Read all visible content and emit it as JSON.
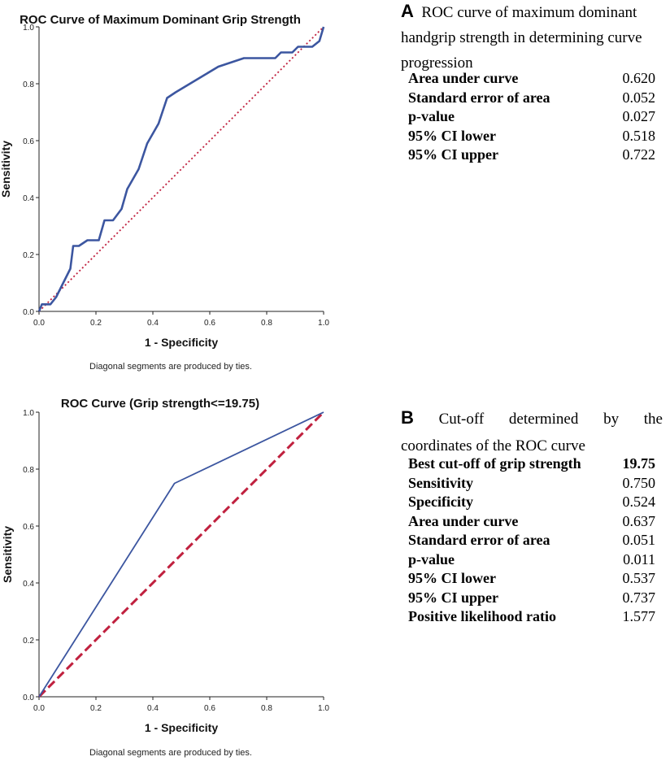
{
  "chart_data": [
    {
      "id": "A",
      "type": "line",
      "title": "ROC Curve of Maximum Dominant Grip Strength",
      "xlabel": "1 - Specificity",
      "ylabel": "Sensitivity",
      "xlim": [
        0,
        1
      ],
      "ylim": [
        0,
        1
      ],
      "xticks": [
        "0.0",
        "0.2",
        "0.4",
        "0.6",
        "0.8",
        "1.0"
      ],
      "yticks": [
        "0.0",
        "0.2",
        "0.4",
        "0.6",
        "0.8",
        "1.0"
      ],
      "footnote": "Diagonal segments are produced by ties.",
      "series": [
        {
          "name": "ROC curve",
          "color": "#3c56a0",
          "style": "solid",
          "x": [
            0,
            0.01,
            0.04,
            0.06,
            0.09,
            0.11,
            0.12,
            0.14,
            0.17,
            0.19,
            0.21,
            0.23,
            0.26,
            0.29,
            0.31,
            0.35,
            0.38,
            0.42,
            0.45,
            0.48,
            0.53,
            0.58,
            0.63,
            0.69,
            0.72,
            0.75,
            0.83,
            0.85,
            0.89,
            0.91,
            0.96,
            0.985,
            1.0
          ],
          "y": [
            0,
            0.025,
            0.025,
            0.05,
            0.11,
            0.15,
            0.23,
            0.23,
            0.25,
            0.25,
            0.25,
            0.32,
            0.32,
            0.36,
            0.43,
            0.5,
            0.59,
            0.66,
            0.75,
            0.77,
            0.8,
            0.83,
            0.86,
            0.88,
            0.89,
            0.89,
            0.89,
            0.91,
            0.91,
            0.93,
            0.93,
            0.95,
            1.0
          ]
        },
        {
          "name": "Reference line",
          "color": "#c0203e",
          "style": "dotted",
          "x": [
            0,
            1
          ],
          "y": [
            0,
            1
          ]
        }
      ]
    },
    {
      "id": "B",
      "type": "line",
      "title": "ROC Curve (Grip strength<=19.75)",
      "xlabel": "1 - Specificity",
      "ylabel": "Sensitivity",
      "xlim": [
        0,
        1
      ],
      "ylim": [
        0,
        1
      ],
      "xticks": [
        "0.0",
        "0.2",
        "0.4",
        "0.6",
        "0.8",
        "1.0"
      ],
      "yticks": [
        "0.0",
        "0.2",
        "0.4",
        "0.6",
        "0.8",
        "1.0"
      ],
      "footnote": "Diagonal segments are produced by ties.",
      "series": [
        {
          "name": "ROC curve",
          "color": "#3c56a0",
          "style": "solid",
          "x": [
            0,
            0.476,
            1.0
          ],
          "y": [
            0,
            0.75,
            1.0
          ]
        },
        {
          "name": "Reference line",
          "color": "#c0203e",
          "style": "dashed",
          "x": [
            0,
            1
          ],
          "y": [
            0,
            1
          ]
        }
      ]
    }
  ],
  "panel_a": {
    "letter": "A",
    "caption_line1": "ROC curve of maximum dominant",
    "caption_line2": "handgrip strength in determining curve",
    "caption_line3": "progression",
    "rows": [
      {
        "label": "Area under curve",
        "value": "0.620"
      },
      {
        "label": "Standard error of area",
        "value": "0.052"
      },
      {
        "label": "p-value",
        "value": "0.027"
      },
      {
        "label": "95% CI lower",
        "value": "0.518"
      },
      {
        "label": "95% CI upper",
        "value": "0.722"
      }
    ]
  },
  "panel_b": {
    "letter": "B",
    "caption_w1": "Cut-off",
    "caption_w2": "determined",
    "caption_w3": "by",
    "caption_w4": "the",
    "caption_line2": "coordinates of the ROC curve",
    "rows": [
      {
        "label": "Best cut-off of grip strength",
        "value": "19.75"
      },
      {
        "label": "Sensitivity",
        "value": "0.750"
      },
      {
        "label": "Specificity",
        "value": "0.524"
      },
      {
        "label": "Area under curve",
        "value": "0.637"
      },
      {
        "label": "Standard error of area",
        "value": "0.051"
      },
      {
        "label": "p-value",
        "value": "0.011"
      },
      {
        "label": "95% CI lower",
        "value": "0.537"
      },
      {
        "label": "95% CI upper",
        "value": "0.737"
      },
      {
        "label": "Positive likelihood ratio",
        "value": "1.577"
      }
    ]
  }
}
